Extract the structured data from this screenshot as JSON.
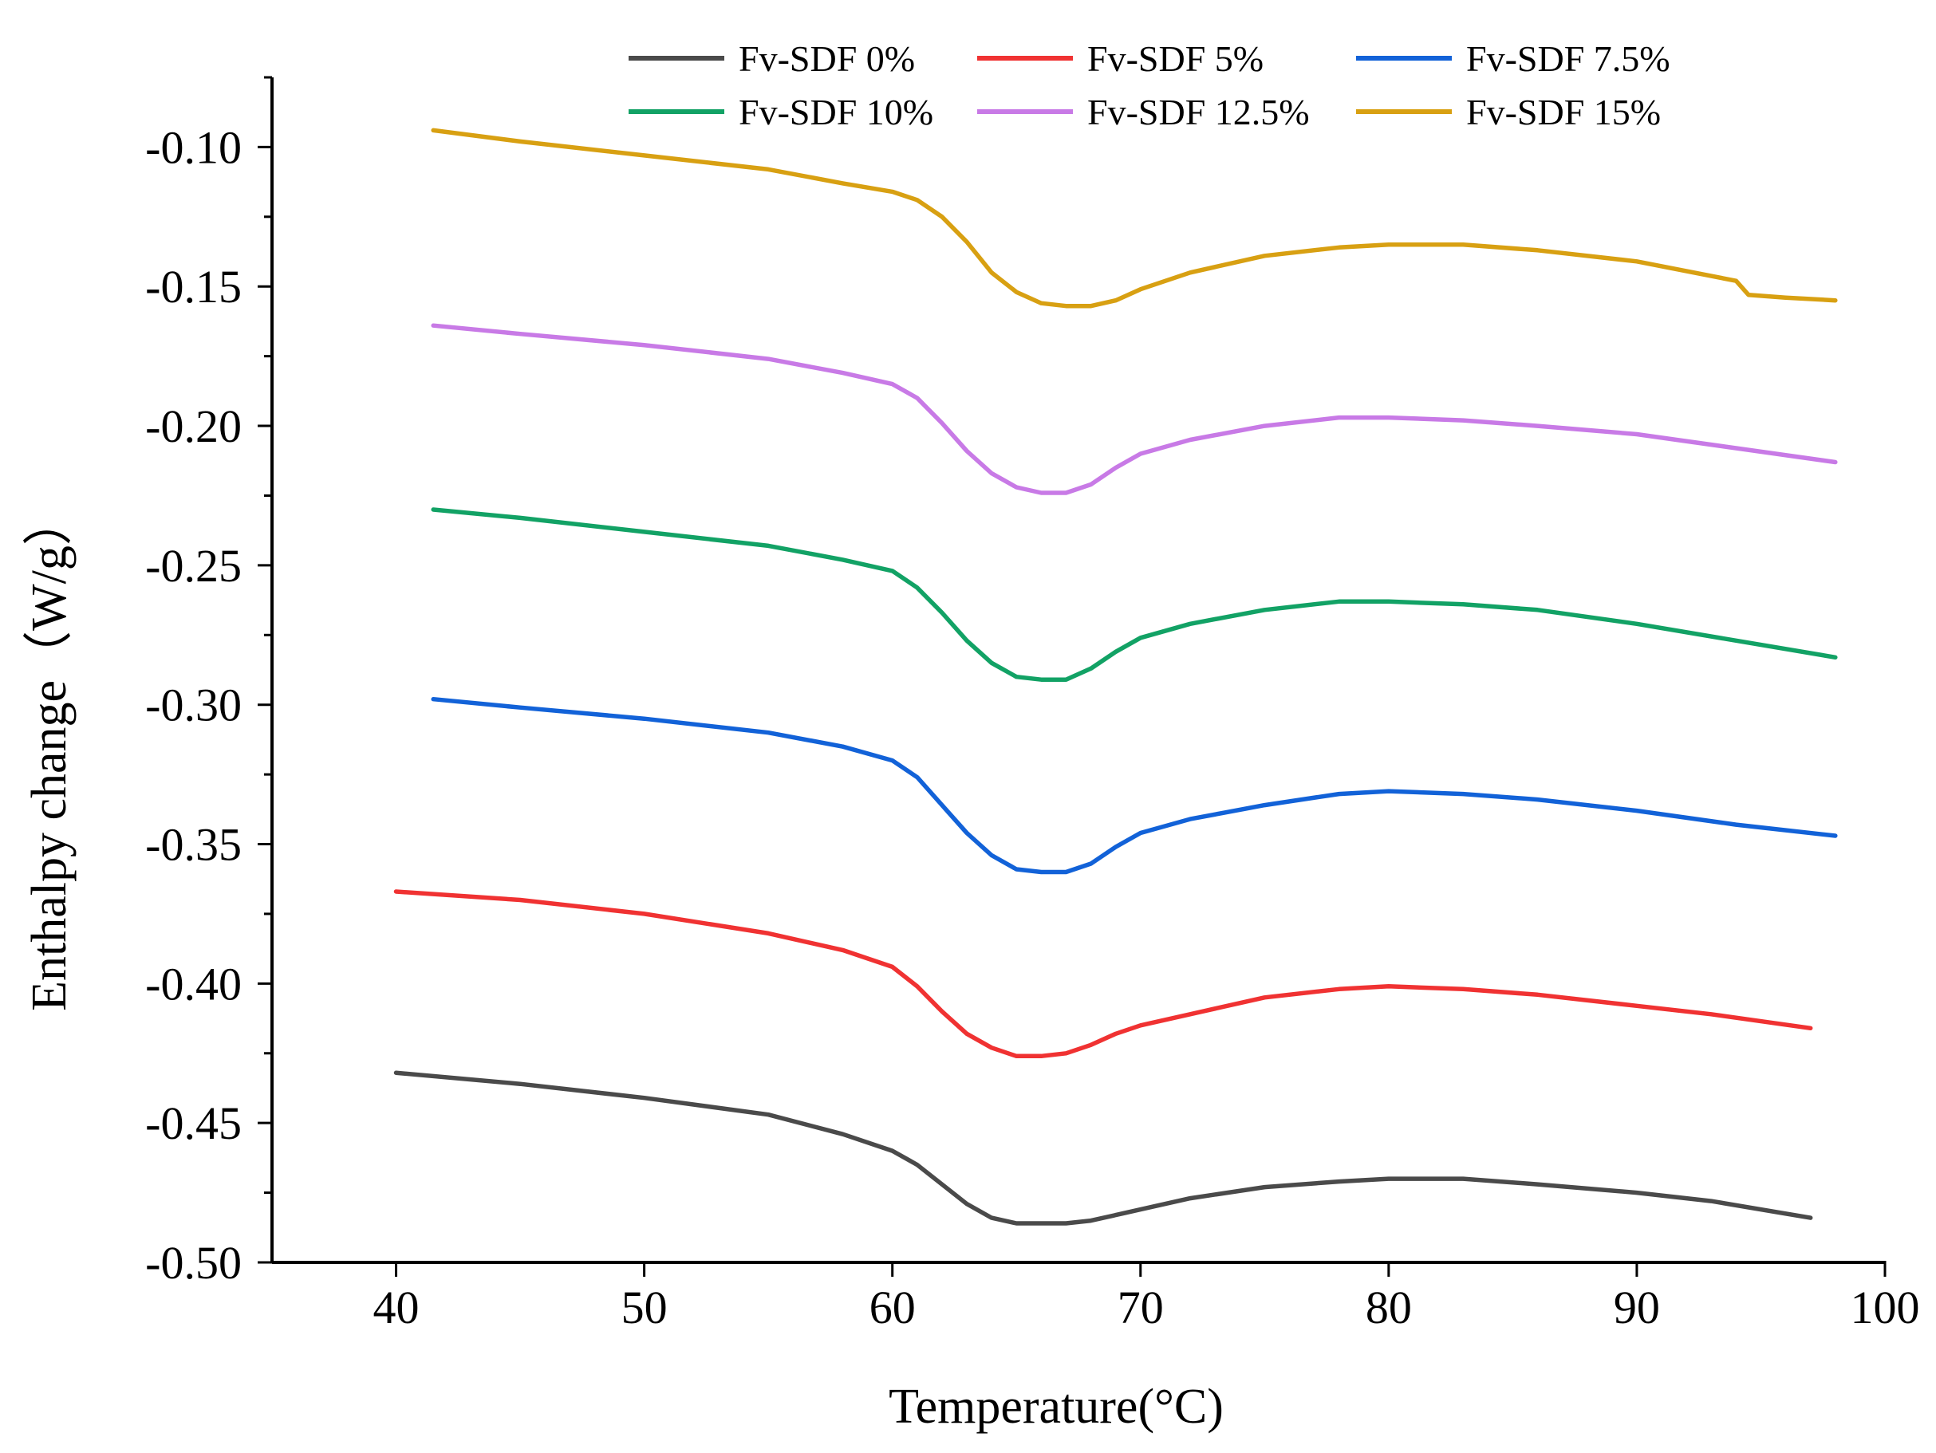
{
  "chart_data": {
    "type": "line",
    "title": "",
    "xlabel": "Temperature(°C)",
    "ylabel": "Enthalpy change（W/g）",
    "xlim": [
      35,
      100
    ],
    "ylim": [
      -0.5,
      -0.075
    ],
    "x_ticks": [
      40,
      50,
      60,
      70,
      80,
      90,
      100
    ],
    "x_tick_labels": [
      "40",
      "50",
      "60",
      "70",
      "80",
      "90",
      "100"
    ],
    "y_ticks": [
      -0.5,
      -0.45,
      -0.4,
      -0.35,
      -0.3,
      -0.25,
      -0.2,
      -0.15,
      -0.1
    ],
    "y_tick_labels": [
      "-0.50",
      "-0.45",
      "-0.40",
      "-0.35",
      "-0.30",
      "-0.25",
      "-0.20",
      "-0.15",
      "-0.10"
    ],
    "grid": false,
    "legend_position": "top",
    "series": [
      {
        "name": "Fv-SDF 0%",
        "color": "#4a4a4a",
        "points": [
          [
            40,
            -0.432
          ],
          [
            45,
            -0.436
          ],
          [
            50,
            -0.441
          ],
          [
            55,
            -0.447
          ],
          [
            58,
            -0.454
          ],
          [
            60,
            -0.46
          ],
          [
            61,
            -0.465
          ],
          [
            62,
            -0.472
          ],
          [
            63,
            -0.479
          ],
          [
            64,
            -0.484
          ],
          [
            65,
            -0.486
          ],
          [
            66,
            -0.486
          ],
          [
            67,
            -0.486
          ],
          [
            68,
            -0.485
          ],
          [
            70,
            -0.481
          ],
          [
            72,
            -0.477
          ],
          [
            75,
            -0.473
          ],
          [
            78,
            -0.471
          ],
          [
            80,
            -0.47
          ],
          [
            83,
            -0.47
          ],
          [
            86,
            -0.472
          ],
          [
            90,
            -0.475
          ],
          [
            93,
            -0.478
          ],
          [
            97,
            -0.484
          ]
        ]
      },
      {
        "name": "Fv-SDF 5%",
        "color": "#f03232",
        "points": [
          [
            40,
            -0.367
          ],
          [
            45,
            -0.37
          ],
          [
            50,
            -0.375
          ],
          [
            55,
            -0.382
          ],
          [
            58,
            -0.388
          ],
          [
            60,
            -0.394
          ],
          [
            61,
            -0.401
          ],
          [
            62,
            -0.41
          ],
          [
            63,
            -0.418
          ],
          [
            64,
            -0.423
          ],
          [
            65,
            -0.426
          ],
          [
            66,
            -0.426
          ],
          [
            67,
            -0.425
          ],
          [
            68,
            -0.422
          ],
          [
            69,
            -0.418
          ],
          [
            70,
            -0.415
          ],
          [
            72,
            -0.411
          ],
          [
            75,
            -0.405
          ],
          [
            78,
            -0.402
          ],
          [
            80,
            -0.401
          ],
          [
            83,
            -0.402
          ],
          [
            86,
            -0.404
          ],
          [
            90,
            -0.408
          ],
          [
            93,
            -0.411
          ],
          [
            97,
            -0.416
          ]
        ]
      },
      {
        "name": "Fv-SDF 7.5%",
        "color": "#1262d8",
        "points": [
          [
            41.5,
            -0.298
          ],
          [
            45,
            -0.301
          ],
          [
            50,
            -0.305
          ],
          [
            55,
            -0.31
          ],
          [
            58,
            -0.315
          ],
          [
            60,
            -0.32
          ],
          [
            61,
            -0.326
          ],
          [
            62,
            -0.336
          ],
          [
            63,
            -0.346
          ],
          [
            64,
            -0.354
          ],
          [
            65,
            -0.359
          ],
          [
            66,
            -0.36
          ],
          [
            67,
            -0.36
          ],
          [
            68,
            -0.357
          ],
          [
            69,
            -0.351
          ],
          [
            70,
            -0.346
          ],
          [
            72,
            -0.341
          ],
          [
            75,
            -0.336
          ],
          [
            78,
            -0.332
          ],
          [
            80,
            -0.331
          ],
          [
            83,
            -0.332
          ],
          [
            86,
            -0.334
          ],
          [
            90,
            -0.338
          ],
          [
            94,
            -0.343
          ],
          [
            98,
            -0.347
          ]
        ]
      },
      {
        "name": "Fv-SDF 10%",
        "color": "#12a265",
        "points": [
          [
            41.5,
            -0.23
          ],
          [
            45,
            -0.233
          ],
          [
            50,
            -0.238
          ],
          [
            55,
            -0.243
          ],
          [
            58,
            -0.248
          ],
          [
            60,
            -0.252
          ],
          [
            61,
            -0.258
          ],
          [
            62,
            -0.267
          ],
          [
            63,
            -0.277
          ],
          [
            64,
            -0.285
          ],
          [
            65,
            -0.29
          ],
          [
            66,
            -0.291
          ],
          [
            67,
            -0.291
          ],
          [
            68,
            -0.287
          ],
          [
            69,
            -0.281
          ],
          [
            70,
            -0.276
          ],
          [
            72,
            -0.271
          ],
          [
            75,
            -0.266
          ],
          [
            78,
            -0.263
          ],
          [
            80,
            -0.263
          ],
          [
            83,
            -0.264
          ],
          [
            86,
            -0.266
          ],
          [
            90,
            -0.271
          ],
          [
            94,
            -0.277
          ],
          [
            98,
            -0.283
          ]
        ]
      },
      {
        "name": "Fv-SDF 12.5%",
        "color": "#c87ae6",
        "points": [
          [
            41.5,
            -0.164
          ],
          [
            45,
            -0.167
          ],
          [
            50,
            -0.171
          ],
          [
            55,
            -0.176
          ],
          [
            58,
            -0.181
          ],
          [
            60,
            -0.185
          ],
          [
            61,
            -0.19
          ],
          [
            62,
            -0.199
          ],
          [
            63,
            -0.209
          ],
          [
            64,
            -0.217
          ],
          [
            65,
            -0.222
          ],
          [
            66,
            -0.224
          ],
          [
            67,
            -0.224
          ],
          [
            68,
            -0.221
          ],
          [
            69,
            -0.215
          ],
          [
            70,
            -0.21
          ],
          [
            72,
            -0.205
          ],
          [
            75,
            -0.2
          ],
          [
            78,
            -0.197
          ],
          [
            80,
            -0.197
          ],
          [
            83,
            -0.198
          ],
          [
            86,
            -0.2
          ],
          [
            90,
            -0.203
          ],
          [
            94,
            -0.208
          ],
          [
            98,
            -0.213
          ]
        ]
      },
      {
        "name": "Fv-SDF 15%",
        "color": "#d8a012",
        "points": [
          [
            41.5,
            -0.094
          ],
          [
            45,
            -0.098
          ],
          [
            50,
            -0.103
          ],
          [
            55,
            -0.108
          ],
          [
            58,
            -0.113
          ],
          [
            60,
            -0.116
          ],
          [
            61,
            -0.119
          ],
          [
            62,
            -0.125
          ],
          [
            63,
            -0.134
          ],
          [
            64,
            -0.145
          ],
          [
            65,
            -0.152
          ],
          [
            66,
            -0.156
          ],
          [
            67,
            -0.157
          ],
          [
            68,
            -0.157
          ],
          [
            69,
            -0.155
          ],
          [
            70,
            -0.151
          ],
          [
            72,
            -0.145
          ],
          [
            75,
            -0.139
          ],
          [
            78,
            -0.136
          ],
          [
            80,
            -0.135
          ],
          [
            83,
            -0.135
          ],
          [
            86,
            -0.137
          ],
          [
            90,
            -0.141
          ],
          [
            94,
            -0.148
          ],
          [
            94.5,
            -0.153
          ],
          [
            96,
            -0.154
          ],
          [
            98,
            -0.155
          ]
        ]
      }
    ]
  }
}
